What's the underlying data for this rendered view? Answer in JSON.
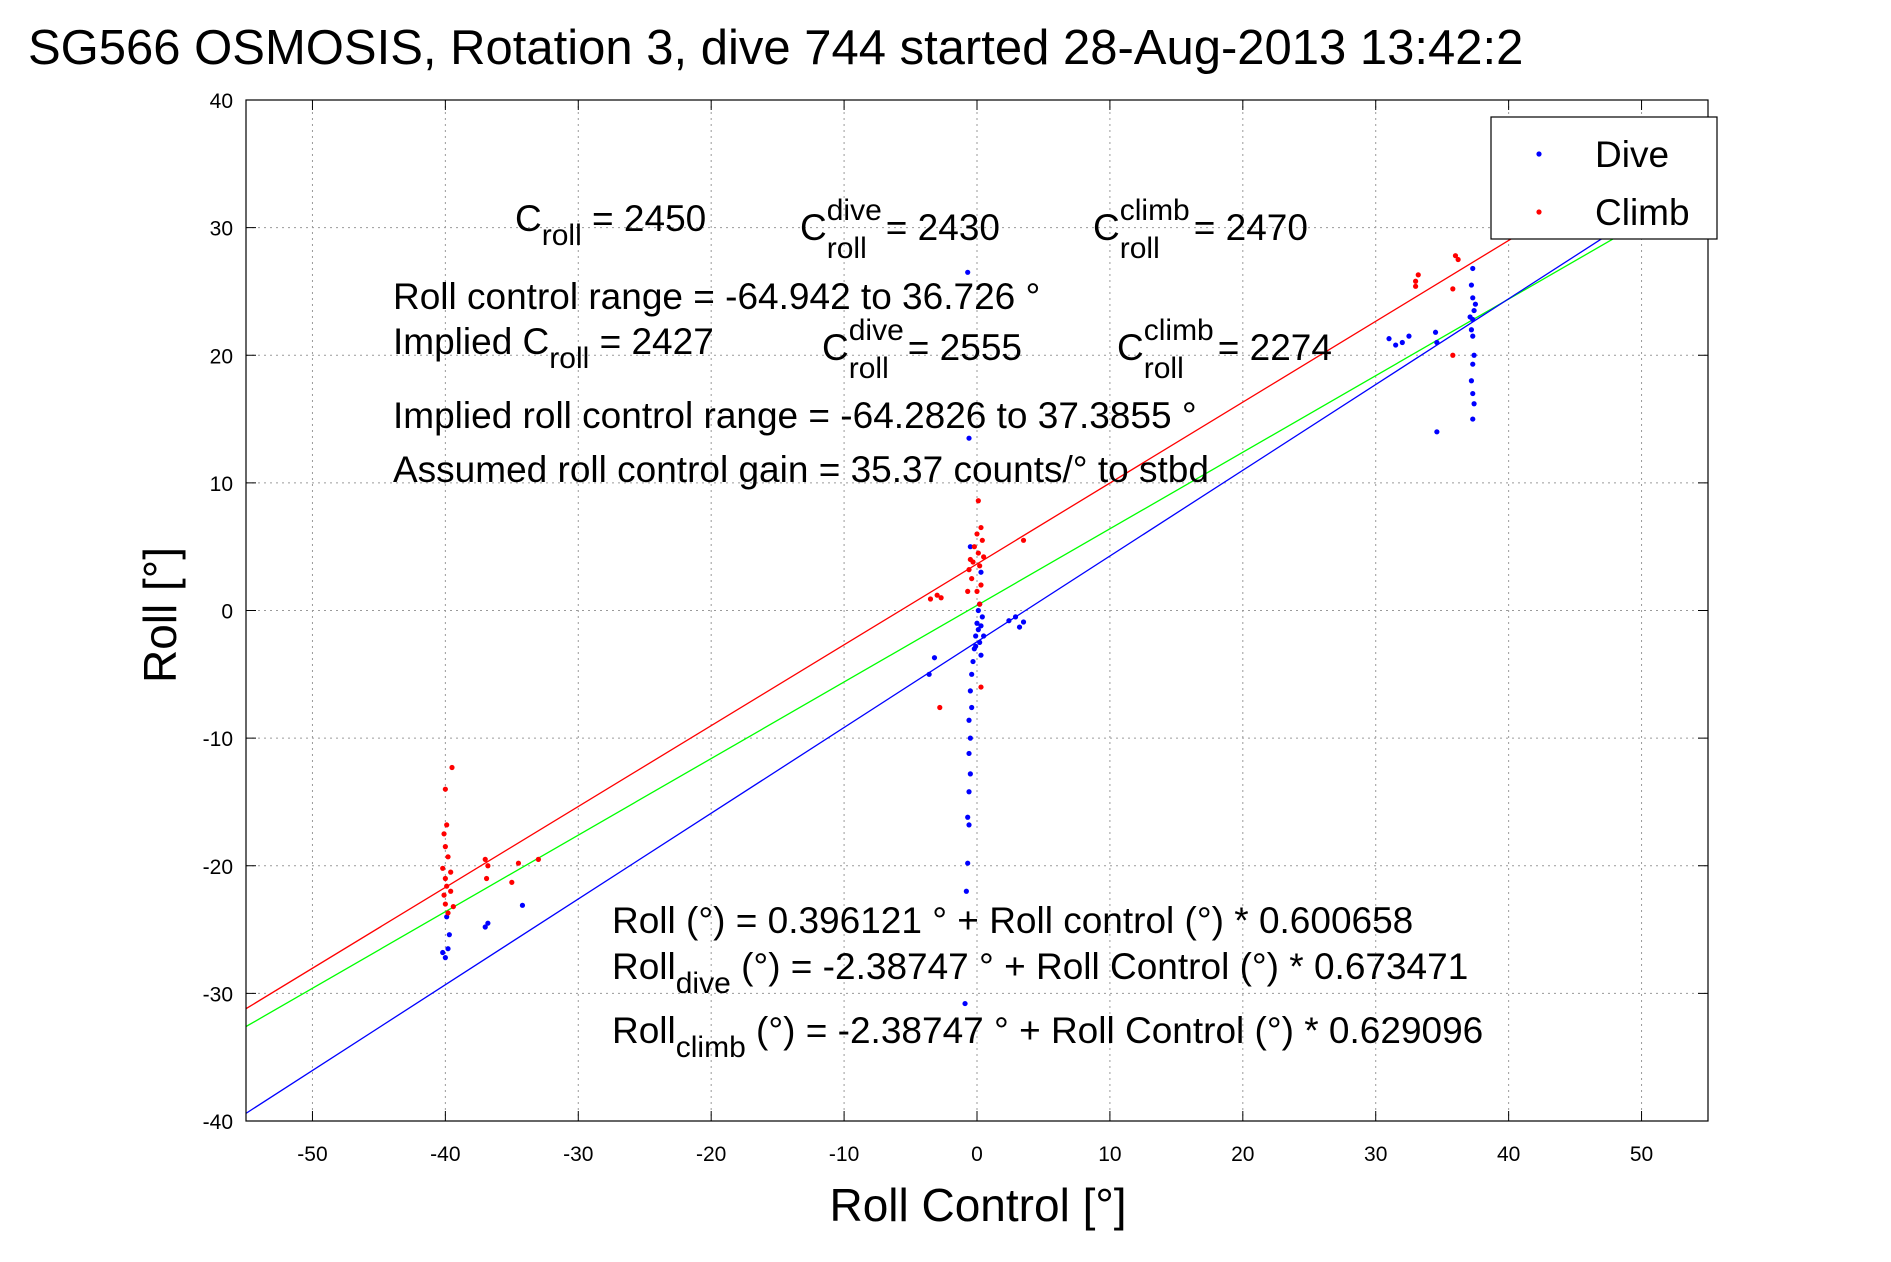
{
  "title": "SG566 OSMOSIS, Rotation 3, dive 744 started 28-Aug-2013 13:42:2",
  "chart_data": {
    "type": "scatter",
    "xlabel": "Roll Control [°]",
    "ylabel": "Roll [°]",
    "xlim": [
      -55,
      55
    ],
    "ylim": [
      -40,
      40
    ],
    "xticks": [
      -50,
      -40,
      -30,
      -20,
      -10,
      0,
      10,
      20,
      30,
      40,
      50
    ],
    "yticks": [
      -40,
      -30,
      -20,
      -10,
      0,
      10,
      20,
      30,
      40
    ],
    "grid": true,
    "legend_position": "top-right",
    "series": [
      {
        "name": "Dive",
        "color": "#0000ff",
        "points": [
          [
            -40.2,
            -26.8
          ],
          [
            -40.0,
            -27.2
          ],
          [
            -39.8,
            -26.5
          ],
          [
            -39.9,
            -24.0
          ],
          [
            -39.7,
            -25.4
          ],
          [
            -37.0,
            -24.8
          ],
          [
            -36.8,
            -24.5
          ],
          [
            -34.2,
            -23.1
          ],
          [
            -3.6,
            -5.0
          ],
          [
            -3.2,
            -3.7
          ],
          [
            -0.9,
            -30.8
          ],
          [
            -0.8,
            -22.0
          ],
          [
            -0.7,
            -19.8
          ],
          [
            -0.6,
            -16.8
          ],
          [
            -0.7,
            -16.2
          ],
          [
            -0.6,
            -14.2
          ],
          [
            -0.5,
            -12.8
          ],
          [
            -0.6,
            -11.2
          ],
          [
            -0.5,
            -10.0
          ],
          [
            -0.6,
            -8.6
          ],
          [
            -0.4,
            -7.6
          ],
          [
            -0.5,
            -6.3
          ],
          [
            -0.4,
            -5.0
          ],
          [
            -0.3,
            -4.0
          ],
          [
            -0.2,
            -3.0
          ],
          [
            -0.1,
            -2.0
          ],
          [
            0.0,
            -1.0
          ],
          [
            0.1,
            0.0
          ],
          [
            0.2,
            -2.5
          ],
          [
            0.3,
            -3.5
          ],
          [
            0.1,
            -1.5
          ],
          [
            -0.1,
            -2.8
          ],
          [
            0.3,
            -1.2
          ],
          [
            0.4,
            -0.5
          ],
          [
            0.2,
            0.5
          ],
          [
            0.5,
            -2.0
          ],
          [
            -0.7,
            26.5
          ],
          [
            -0.6,
            13.5
          ],
          [
            -0.5,
            5.0
          ],
          [
            0.3,
            3.0
          ],
          [
            2.4,
            -0.8
          ],
          [
            2.9,
            -0.5
          ],
          [
            3.2,
            -1.3
          ],
          [
            3.5,
            -0.9
          ],
          [
            31.0,
            21.3
          ],
          [
            31.5,
            20.8
          ],
          [
            32.0,
            21.0
          ],
          [
            32.5,
            21.5
          ],
          [
            34.5,
            21.8
          ],
          [
            34.6,
            21.0
          ],
          [
            34.6,
            14.0
          ],
          [
            37.3,
            26.8
          ],
          [
            37.2,
            25.5
          ],
          [
            37.3,
            24.5
          ],
          [
            37.4,
            23.5
          ],
          [
            37.3,
            22.8
          ],
          [
            37.2,
            22.0
          ],
          [
            37.3,
            21.5
          ],
          [
            37.4,
            20.0
          ],
          [
            37.3,
            19.3
          ],
          [
            37.2,
            18.0
          ],
          [
            37.3,
            17.0
          ],
          [
            37.4,
            16.2
          ],
          [
            37.3,
            15.0
          ],
          [
            37.1,
            23.0
          ],
          [
            37.5,
            24.0
          ]
        ]
      },
      {
        "name": "Climb",
        "color": "#ff0000",
        "points": [
          [
            -40.0,
            -14.0
          ],
          [
            -39.9,
            -16.8
          ],
          [
            -40.1,
            -17.5
          ],
          [
            -40.0,
            -18.5
          ],
          [
            -39.8,
            -19.3
          ],
          [
            -40.2,
            -20.2
          ],
          [
            -40.0,
            -21.0
          ],
          [
            -39.9,
            -21.6
          ],
          [
            -40.1,
            -22.3
          ],
          [
            -40.0,
            -23.0
          ],
          [
            -39.8,
            -23.7
          ],
          [
            -39.5,
            -12.3
          ],
          [
            -39.6,
            -20.5
          ],
          [
            -39.6,
            -22.0
          ],
          [
            -39.4,
            -23.2
          ],
          [
            -37.0,
            -19.5
          ],
          [
            -36.8,
            -20.0
          ],
          [
            -36.9,
            -21.0
          ],
          [
            -35.0,
            -21.3
          ],
          [
            -34.5,
            -19.8
          ],
          [
            -33.0,
            -19.5
          ],
          [
            -3.5,
            0.9
          ],
          [
            -3.0,
            1.2
          ],
          [
            -2.7,
            1.0
          ],
          [
            -2.8,
            -7.6
          ],
          [
            -0.7,
            1.5
          ],
          [
            -0.6,
            3.2
          ],
          [
            -0.5,
            4.0
          ],
          [
            -0.4,
            2.5
          ],
          [
            -0.3,
            3.8
          ],
          [
            -0.2,
            5.0
          ],
          [
            0.0,
            6.0
          ],
          [
            0.1,
            4.5
          ],
          [
            0.2,
            3.5
          ],
          [
            0.3,
            2.0
          ],
          [
            0.4,
            5.5
          ],
          [
            0.5,
            4.2
          ],
          [
            0.3,
            6.5
          ],
          [
            0.1,
            8.6
          ],
          [
            0.0,
            1.5
          ],
          [
            0.2,
            0.5
          ],
          [
            0.3,
            -6.0
          ],
          [
            3.5,
            5.5
          ],
          [
            33.0,
            25.8
          ],
          [
            33.2,
            26.3
          ],
          [
            33.0,
            25.4
          ],
          [
            36.0,
            27.8
          ],
          [
            36.2,
            27.5
          ],
          [
            35.8,
            25.2
          ],
          [
            35.8,
            20.0
          ]
        ]
      }
    ],
    "fit_lines": [
      {
        "color": "#ff0000",
        "points": [
          [
            -55,
            -31.2
          ],
          [
            55,
            38.5
          ]
        ]
      },
      {
        "color": "#00ff00",
        "points": [
          [
            -55,
            -32.6
          ],
          [
            55,
            33.4
          ]
        ]
      },
      {
        "color": "#0000ff",
        "points": [
          [
            -55,
            -39.4
          ],
          [
            55,
            34.5
          ]
        ]
      }
    ]
  },
  "annotations": {
    "c_roll_label": "C",
    "c_roll_sub": "roll",
    "c_roll_value": "= 2450",
    "c_dive_sup": "dive",
    "c_dive_sub": "roll",
    "c_dive_value": "= 2430",
    "c_climb_sup": "climb",
    "c_climb_sub": "roll",
    "c_climb_value": "= 2470",
    "range_text": "Roll control range = -64.942 to 36.726 °",
    "implied_label": "Implied C",
    "implied_sub": "roll",
    "implied_value": "= 2427",
    "implied_dive_sup": "dive",
    "implied_dive_sub": "roll",
    "implied_dive_value": "= 2555",
    "implied_climb_sup": "climb",
    "implied_climb_sub": "roll",
    "implied_climb_value": "= 2274",
    "implied_range_text": "Implied roll control range = -64.2826 to 37.3855 °",
    "gain_text": "Assumed roll control gain = 35.37 counts/° to stbd",
    "fit1_text": "Roll (°) = 0.396121 ° + Roll control (°) * 0.600658",
    "fit2_prefix": "Roll",
    "fit2_sub": "dive",
    "fit2_text": " (°) = -2.38747 ° + Roll Control (°) * 0.673471",
    "fit3_prefix": "Roll",
    "fit3_sub": "climb",
    "fit3_text": " (°) = -2.38747 ° + Roll Control (°) * 0.629096"
  }
}
